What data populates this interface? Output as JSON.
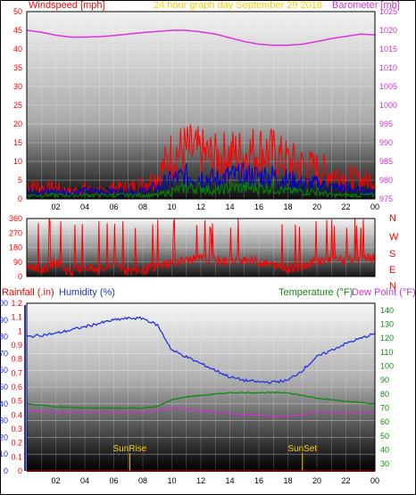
{
  "chart_data": [
    {
      "type": "line",
      "title": "24 hour graph day   September 29 2018",
      "left_label": "Windspeed [mph]",
      "right_label": "Barometer [mb]",
      "y_left": {
        "ticks": [
          "0",
          "5",
          "10",
          "15",
          "20",
          "25",
          "30",
          "35",
          "40",
          "45",
          "50"
        ],
        "range": [
          0,
          50
        ]
      },
      "y_right": {
        "ticks": [
          "975",
          "980",
          "985",
          "990",
          "995",
          "1000",
          "1005",
          "1010",
          "1015",
          "1020",
          "1025"
        ],
        "range": [
          975,
          1025
        ]
      },
      "x_ticks": [
        "02",
        "04",
        "06",
        "08",
        "10",
        "12",
        "14",
        "16",
        "18",
        "20",
        "22",
        "00"
      ],
      "x_range_hours": [
        0,
        24
      ],
      "series": [
        {
          "name": "Windspeed",
          "axis": "left",
          "color": "#ff0000",
          "points": [
            [
              0,
              4
            ],
            [
              1,
              3
            ],
            [
              2,
              3
            ],
            [
              3,
              2
            ],
            [
              4,
              3
            ],
            [
              5,
              2
            ],
            [
              6,
              3
            ],
            [
              7,
              3
            ],
            [
              8,
              4
            ],
            [
              9,
              6
            ],
            [
              10,
              12
            ],
            [
              11,
              13
            ],
            [
              12,
              12
            ],
            [
              13,
              11
            ],
            [
              14,
              12
            ],
            [
              15,
              12
            ],
            [
              16,
              13
            ],
            [
              17,
              12
            ],
            [
              18,
              10
            ],
            [
              19,
              9
            ],
            [
              20,
              8
            ],
            [
              21,
              7
            ],
            [
              22,
              6
            ],
            [
              23,
              5
            ],
            [
              24,
              5
            ]
          ]
        },
        {
          "name": "Gust",
          "axis": "left",
          "color": "#0000cc",
          "points": [
            [
              0,
              2
            ],
            [
              2,
              2
            ],
            [
              4,
              2
            ],
            [
              6,
              2
            ],
            [
              8,
              2
            ],
            [
              9,
              3
            ],
            [
              10,
              5
            ],
            [
              11,
              6
            ],
            [
              12,
              6
            ],
            [
              13,
              5
            ],
            [
              14,
              6
            ],
            [
              15,
              6
            ],
            [
              16,
              6
            ],
            [
              17,
              6
            ],
            [
              18,
              5
            ],
            [
              19,
              4
            ],
            [
              20,
              4
            ],
            [
              21,
              3
            ],
            [
              22,
              3
            ],
            [
              23,
              2
            ],
            [
              24,
              2
            ]
          ]
        },
        {
          "name": "Wind",
          "axis": "left",
          "color": "#008800",
          "points": [
            [
              0,
              1
            ],
            [
              2,
              1
            ],
            [
              4,
              1
            ],
            [
              6,
              1
            ],
            [
              8,
              1
            ],
            [
              9,
              1
            ],
            [
              10,
              2
            ],
            [
              11,
              3
            ],
            [
              12,
              3
            ],
            [
              13,
              2
            ],
            [
              14,
              3
            ],
            [
              15,
              3
            ],
            [
              16,
              3
            ],
            [
              17,
              3
            ],
            [
              18,
              2
            ],
            [
              19,
              2
            ],
            [
              20,
              2
            ],
            [
              21,
              1
            ],
            [
              22,
              1
            ],
            [
              23,
              1
            ],
            [
              24,
              1
            ]
          ]
        },
        {
          "name": "Barometer",
          "axis": "right",
          "color": "#dd33dd",
          "points": [
            [
              0,
              1020
            ],
            [
              1,
              1019.5
            ],
            [
              2,
              1018.7
            ],
            [
              3,
              1018.2
            ],
            [
              4,
              1018.2
            ],
            [
              5,
              1018.3
            ],
            [
              6,
              1018.6
            ],
            [
              7,
              1019
            ],
            [
              8,
              1019.4
            ],
            [
              9,
              1019.7
            ],
            [
              10,
              1020
            ],
            [
              11,
              1020
            ],
            [
              12,
              1019.6
            ],
            [
              13,
              1019
            ],
            [
              14,
              1018
            ],
            [
              15,
              1017
            ],
            [
              16,
              1016.3
            ],
            [
              17,
              1016
            ],
            [
              18,
              1016
            ],
            [
              19,
              1016.3
            ],
            [
              20,
              1017
            ],
            [
              21,
              1017.8
            ],
            [
              22,
              1018.4
            ],
            [
              23,
              1019
            ],
            [
              24,
              1018.8
            ]
          ]
        }
      ]
    },
    {
      "type": "line",
      "title": "",
      "y_left": {
        "ticks": [
          "0",
          "90",
          "180",
          "270",
          "360"
        ],
        "range": [
          0,
          360
        ]
      },
      "right_labels": [
        "N",
        "W",
        "S",
        "E",
        "N"
      ],
      "x_range_hours": [
        0,
        24
      ],
      "series": [
        {
          "name": "Wind direction",
          "axis": "left",
          "color": "#ff0000",
          "points": [
            [
              0,
              60
            ],
            [
              1,
              40
            ],
            [
              2,
              90
            ],
            [
              3,
              20
            ],
            [
              4,
              60
            ],
            [
              5,
              30
            ],
            [
              6,
              80
            ],
            [
              7,
              30
            ],
            [
              8,
              40
            ],
            [
              9,
              60
            ],
            [
              10,
              90
            ],
            [
              11,
              100
            ],
            [
              12,
              110
            ],
            [
              13,
              100
            ],
            [
              14,
              90
            ],
            [
              15,
              110
            ],
            [
              16,
              90
            ],
            [
              17,
              70
            ],
            [
              18,
              50
            ],
            [
              19,
              60
            ],
            [
              20,
              100
            ],
            [
              21,
              110
            ],
            [
              22,
              100
            ],
            [
              23,
              120
            ],
            [
              24,
              110
            ]
          ]
        }
      ]
    },
    {
      "type": "line",
      "title": "",
      "left_labels": [
        "Rainfall (.in)",
        "Humidity (%)"
      ],
      "right_labels": [
        "Temperature (°F)",
        "Dew Point (°F)"
      ],
      "y_humidity": {
        "ticks": [
          "0",
          "10",
          "20",
          "30",
          "40",
          "50",
          "60",
          "70",
          "80",
          "90",
          "100"
        ],
        "range": [
          0,
          100
        ]
      },
      "y_rain": {
        "ticks": [
          "0",
          "0.1",
          "0.2",
          "0.3",
          "0.4",
          "0.5",
          "0.6",
          "0.7",
          "0.8",
          "0.9",
          "1",
          "1.1",
          "1.2"
        ],
        "range": [
          0,
          1.2
        ]
      },
      "y_temp": {
        "ticks": [
          "30",
          "40",
          "50",
          "60",
          "70",
          "80",
          "90",
          "100",
          "110",
          "120",
          "130",
          "140"
        ],
        "range": [
          25,
          145
        ]
      },
      "x_ticks": [
        "02",
        "04",
        "06",
        "08",
        "10",
        "12",
        "14",
        "16",
        "18",
        "20",
        "22",
        "00"
      ],
      "x_range_hours": [
        0,
        24
      ],
      "annotations": [
        {
          "label": "SunRise",
          "hour": 7.1
        },
        {
          "label": "SunSet",
          "hour": 19
        }
      ],
      "series": [
        {
          "name": "Humidity",
          "axis": "humidity",
          "color": "#2233dd",
          "points": [
            [
              0,
              80
            ],
            [
              2,
              82
            ],
            [
              4,
              86
            ],
            [
              5,
              88
            ],
            [
              6,
              90
            ],
            [
              7,
              91
            ],
            [
              8,
              91
            ],
            [
              9,
              87
            ],
            [
              10,
              72
            ],
            [
              11,
              68
            ],
            [
              12,
              64
            ],
            [
              13,
              60
            ],
            [
              14,
              56
            ],
            [
              15,
              54
            ],
            [
              16,
              53
            ],
            [
              17,
              53
            ],
            [
              18,
              54
            ],
            [
              19,
              60
            ],
            [
              20,
              68
            ],
            [
              21,
              72
            ],
            [
              22,
              76
            ],
            [
              23,
              79
            ],
            [
              24,
              82
            ]
          ]
        },
        {
          "name": "Temperature",
          "axis": "temp",
          "color": "#118811",
          "points": [
            [
              0,
              73
            ],
            [
              2,
              71
            ],
            [
              4,
              70
            ],
            [
              6,
              70
            ],
            [
              8,
              70
            ],
            [
              9,
              71
            ],
            [
              10,
              76
            ],
            [
              11,
              78
            ],
            [
              12,
              79
            ],
            [
              13,
              80
            ],
            [
              14,
              81
            ],
            [
              15,
              81
            ],
            [
              16,
              81
            ],
            [
              17,
              81
            ],
            [
              18,
              81
            ],
            [
              19,
              79
            ],
            [
              20,
              77
            ],
            [
              21,
              76
            ],
            [
              22,
              75
            ],
            [
              23,
              74
            ],
            [
              24,
              73
            ]
          ]
        },
        {
          "name": "Dew Point",
          "axis": "temp",
          "color": "#cc33cc",
          "points": [
            [
              0,
              68
            ],
            [
              2,
              67
            ],
            [
              4,
              67
            ],
            [
              6,
              67
            ],
            [
              8,
              67
            ],
            [
              9,
              68
            ],
            [
              10,
              70
            ],
            [
              11,
              69
            ],
            [
              12,
              68
            ],
            [
              13,
              67
            ],
            [
              14,
              66
            ],
            [
              15,
              65
            ],
            [
              16,
              65
            ],
            [
              17,
              64
            ],
            [
              18,
              64
            ],
            [
              19,
              65
            ],
            [
              20,
              67
            ],
            [
              21,
              67
            ],
            [
              22,
              67
            ],
            [
              23,
              67
            ],
            [
              24,
              67
            ]
          ]
        },
        {
          "name": "Rainfall",
          "axis": "rain",
          "color": "#ff0000",
          "points": [
            [
              0,
              0
            ],
            [
              24,
              0
            ]
          ]
        }
      ]
    }
  ]
}
